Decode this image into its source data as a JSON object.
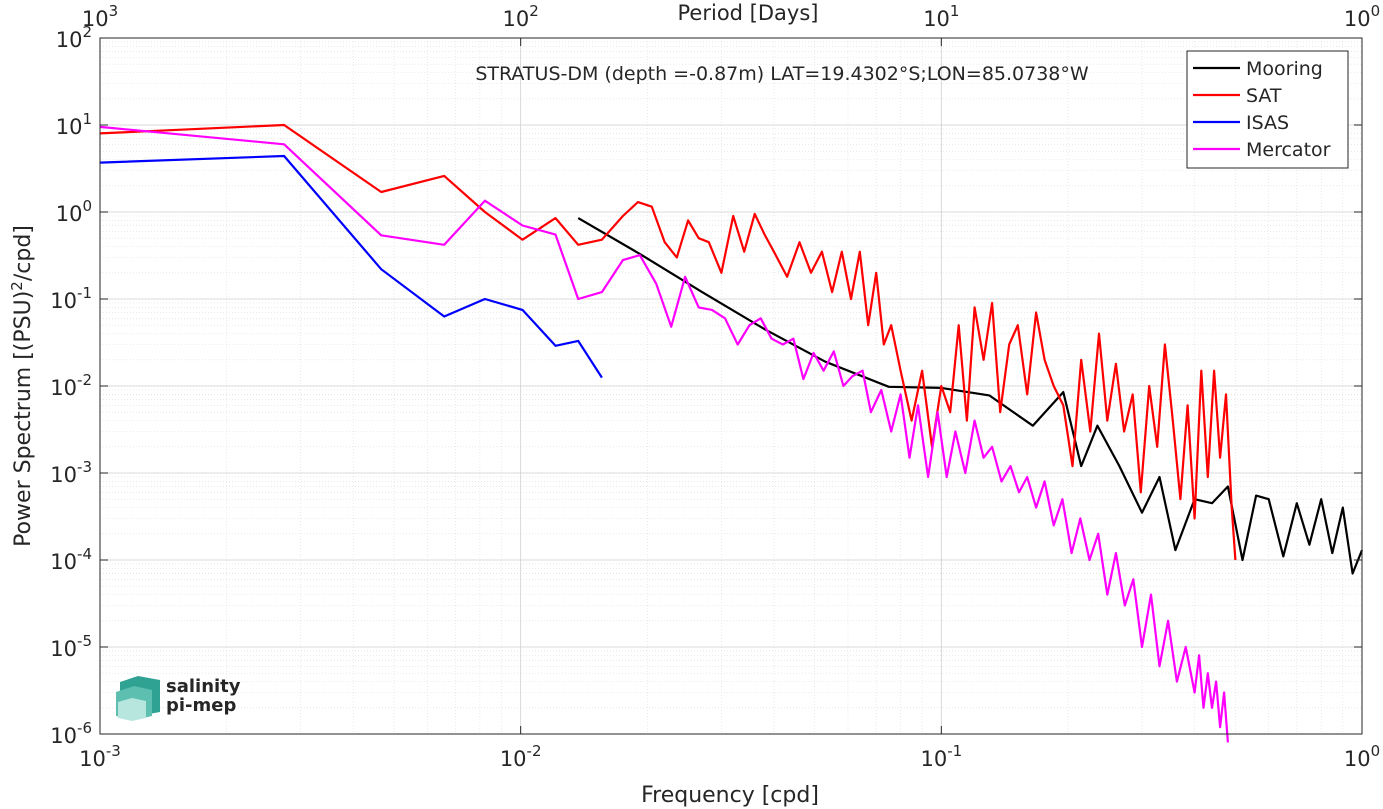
{
  "chart_data": {
    "type": "line",
    "title": "STRATUS-DM (depth =-0.87m) LAT=19.4302°S;LON=85.0738°W",
    "xlabel": "Frequency [cpd]",
    "ylabel_main": "Power Spectrum [(PSU)",
    "ylabel_sup": "2",
    "ylabel_tail": "/cpd]",
    "top_xlabel": "Period [Days]",
    "x_scale": "log",
    "y_scale": "log",
    "xlim": [
      0.001,
      1
    ],
    "ylim": [
      1e-06,
      100
    ],
    "grid": true,
    "legend_position": "top-right",
    "x_ticks": [
      {
        "base": "10",
        "exp": "-3",
        "value": 0.001
      },
      {
        "base": "10",
        "exp": "-2",
        "value": 0.01
      },
      {
        "base": "10",
        "exp": "-1",
        "value": 0.1
      },
      {
        "base": "10",
        "exp": "0",
        "value": 1
      }
    ],
    "top_ticks": [
      {
        "base": "10",
        "exp": "3",
        "value": 0.001
      },
      {
        "base": "10",
        "exp": "2",
        "value": 0.01
      },
      {
        "base": "10",
        "exp": "1",
        "value": 0.1
      },
      {
        "base": "10",
        "exp": "0",
        "value": 1
      }
    ],
    "y_ticks": [
      {
        "base": "10",
        "exp": "-6",
        "value": 1e-06
      },
      {
        "base": "10",
        "exp": "-5",
        "value": 1e-05
      },
      {
        "base": "10",
        "exp": "-4",
        "value": 0.0001
      },
      {
        "base": "10",
        "exp": "-3",
        "value": 0.001
      },
      {
        "base": "10",
        "exp": "-2",
        "value": 0.01
      },
      {
        "base": "10",
        "exp": "-1",
        "value": 0.1
      },
      {
        "base": "10",
        "exp": "0",
        "value": 1
      },
      {
        "base": "10",
        "exp": "1",
        "value": 10
      },
      {
        "base": "10",
        "exp": "2",
        "value": 100
      }
    ],
    "series": [
      {
        "name": "Mooring",
        "color": "#000000",
        "x": [
          0.0137,
          0.0192,
          0.027,
          0.038,
          0.053,
          0.075,
          0.1,
          0.13,
          0.165,
          0.195,
          0.215,
          0.235,
          0.265,
          0.3,
          0.33,
          0.36,
          0.4,
          0.44,
          0.48,
          0.52,
          0.56,
          0.6,
          0.65,
          0.7,
          0.75,
          0.8,
          0.85,
          0.9,
          0.95,
          1.0
        ],
        "y": [
          0.85,
          0.33,
          0.12,
          0.045,
          0.019,
          0.0098,
          0.0095,
          0.0078,
          0.0035,
          0.0085,
          0.0012,
          0.0035,
          0.0012,
          0.00035,
          0.0009,
          0.00013,
          0.0005,
          0.00045,
          0.0007,
          0.0001,
          0.00055,
          0.0005,
          0.00011,
          0.00045,
          0.00015,
          0.0005,
          0.00012,
          0.0004,
          7e-05,
          0.00013
        ]
      },
      {
        "name": "SAT",
        "color": "#ff0000",
        "x": [
          0.001,
          0.00274,
          0.00466,
          0.00658,
          0.00822,
          0.0101,
          0.0121,
          0.0137,
          0.0156,
          0.0175,
          0.019,
          0.0205,
          0.022,
          0.0235,
          0.025,
          0.0265,
          0.028,
          0.03,
          0.032,
          0.034,
          0.036,
          0.038,
          0.04,
          0.043,
          0.046,
          0.049,
          0.052,
          0.055,
          0.058,
          0.061,
          0.064,
          0.067,
          0.07,
          0.073,
          0.076,
          0.08,
          0.085,
          0.09,
          0.095,
          0.1,
          0.105,
          0.11,
          0.115,
          0.12,
          0.126,
          0.132,
          0.138,
          0.145,
          0.152,
          0.16,
          0.168,
          0.176,
          0.185,
          0.195,
          0.205,
          0.215,
          0.226,
          0.237,
          0.248,
          0.26,
          0.272,
          0.285,
          0.298,
          0.312,
          0.326,
          0.34,
          0.355,
          0.37,
          0.385,
          0.4,
          0.415,
          0.43,
          0.445,
          0.46,
          0.475,
          0.49,
          0.5
        ],
        "y": [
          8,
          10,
          1.7,
          2.6,
          1.0,
          0.48,
          0.85,
          0.42,
          0.48,
          0.9,
          1.3,
          1.15,
          0.45,
          0.3,
          0.8,
          0.5,
          0.45,
          0.2,
          0.9,
          0.35,
          0.95,
          0.55,
          0.35,
          0.18,
          0.45,
          0.2,
          0.35,
          0.12,
          0.35,
          0.1,
          0.35,
          0.05,
          0.2,
          0.03,
          0.05,
          0.015,
          0.004,
          0.015,
          0.002,
          0.01,
          0.005,
          0.05,
          0.004,
          0.08,
          0.02,
          0.09,
          0.005,
          0.03,
          0.05,
          0.008,
          0.07,
          0.02,
          0.01,
          0.006,
          0.0012,
          0.02,
          0.003,
          0.04,
          0.004,
          0.018,
          0.003,
          0.008,
          0.0006,
          0.01,
          0.002,
          0.03,
          0.004,
          0.0005,
          0.006,
          0.0003,
          0.015,
          0.0009,
          0.015,
          0.0015,
          0.008,
          0.0004,
          0.0001
        ]
      },
      {
        "name": "ISAS",
        "color": "#0000ff",
        "x": [
          0.001,
          0.00274,
          0.00466,
          0.00658,
          0.00822,
          0.0101,
          0.0121,
          0.0137,
          0.0156
        ],
        "y": [
          3.7,
          4.4,
          0.22,
          0.063,
          0.1,
          0.075,
          0.029,
          0.033,
          0.0125
        ]
      },
      {
        "name": "Mercator",
        "color": "#ff00ff",
        "x": [
          0.001,
          0.00274,
          0.00466,
          0.00658,
          0.00822,
          0.0101,
          0.0121,
          0.0137,
          0.0156,
          0.0175,
          0.0192,
          0.021,
          0.0228,
          0.0246,
          0.0265,
          0.0285,
          0.0306,
          0.0328,
          0.035,
          0.0372,
          0.0395,
          0.042,
          0.0445,
          0.047,
          0.0497,
          0.0525,
          0.0555,
          0.0585,
          0.0615,
          0.065,
          0.068,
          0.072,
          0.076,
          0.08,
          0.084,
          0.088,
          0.093,
          0.098,
          0.103,
          0.108,
          0.114,
          0.12,
          0.126,
          0.132,
          0.139,
          0.146,
          0.153,
          0.16,
          0.168,
          0.176,
          0.185,
          0.194,
          0.204,
          0.214,
          0.225,
          0.236,
          0.248,
          0.26,
          0.273,
          0.286,
          0.3,
          0.315,
          0.33,
          0.346,
          0.363,
          0.381,
          0.4,
          0.41,
          0.42,
          0.43,
          0.44,
          0.45,
          0.46,
          0.47,
          0.48
        ],
        "y": [
          9.5,
          6.0,
          0.54,
          0.42,
          1.35,
          0.7,
          0.55,
          0.1,
          0.12,
          0.28,
          0.32,
          0.15,
          0.048,
          0.18,
          0.08,
          0.075,
          0.06,
          0.03,
          0.05,
          0.06,
          0.035,
          0.03,
          0.035,
          0.012,
          0.024,
          0.015,
          0.025,
          0.01,
          0.013,
          0.015,
          0.005,
          0.009,
          0.003,
          0.008,
          0.0015,
          0.006,
          0.0009,
          0.005,
          0.0009,
          0.003,
          0.001,
          0.004,
          0.0015,
          0.002,
          0.0008,
          0.0012,
          0.0006,
          0.0009,
          0.0004,
          0.0008,
          0.00025,
          0.0005,
          0.00012,
          0.0003,
          0.0001,
          0.0002,
          4e-05,
          0.00012,
          3e-05,
          6e-05,
          1e-05,
          4e-05,
          6e-06,
          2e-05,
          4e-06,
          1e-05,
          3e-06,
          8e-06,
          2e-06,
          5e-06,
          2e-06,
          4e-06,
          1.2e-06,
          3e-06,
          8e-07
        ]
      }
    ]
  },
  "logo": {
    "line1": "salinity",
    "line2": "pi-mep"
  }
}
